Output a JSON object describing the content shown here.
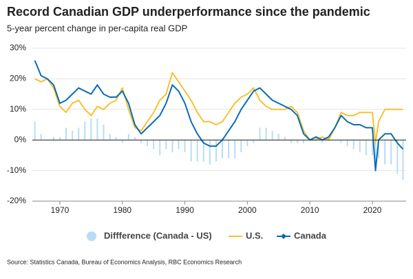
{
  "chart_data": {
    "type": "line",
    "title": "Record Canadian GDP underperformance since the pandemic",
    "subtitle": "5-year percent change in per-capita real GDP",
    "source": "Source: Statistics Canada, Bureau of Economics Analysis, RBC Economics Research",
    "x": [
      1966,
      1967,
      1968,
      1969,
      1970,
      1971,
      1972,
      1973,
      1974,
      1975,
      1976,
      1977,
      1978,
      1979,
      1980,
      1981,
      1982,
      1983,
      1984,
      1985,
      1986,
      1987,
      1988,
      1989,
      1990,
      1991,
      1992,
      1993,
      1994,
      1995,
      1996,
      1997,
      1998,
      1999,
      2000,
      2001,
      2002,
      2003,
      2004,
      2005,
      2006,
      2007,
      2008,
      2009,
      2010,
      2011,
      2012,
      2013,
      2014,
      2015,
      2016,
      2017,
      2018,
      2019,
      2020,
      2020.5,
      2021,
      2022,
      2023,
      2024,
      2024.9
    ],
    "series": [
      {
        "name": "Diffference (Canada - US)",
        "color": "#b9dcf4",
        "kind": "bar",
        "values": [
          6,
          2,
          0,
          1,
          1,
          4,
          3,
          4,
          6,
          7,
          7,
          5,
          2,
          1,
          -1,
          2,
          1,
          -1,
          -2,
          -3,
          -5,
          -3,
          -4,
          -3,
          -4,
          -7,
          -7,
          -7,
          -8,
          -7,
          -6,
          -6,
          -6,
          -4,
          -2,
          -1,
          4,
          4,
          3,
          2,
          1,
          -1,
          -1,
          -1,
          0,
          1,
          -1,
          1,
          0,
          -1,
          -2,
          -3,
          -4,
          -5,
          -5,
          -9,
          -6,
          -8,
          -8,
          -11,
          -13
        ]
      },
      {
        "name": "U.S.",
        "color": "#f5c232",
        "kind": "line",
        "values": [
          20,
          19,
          20,
          17,
          11,
          9,
          12,
          13,
          10,
          8,
          11,
          10,
          12,
          13,
          17,
          10,
          4,
          3,
          6,
          9,
          13,
          15,
          22,
          19,
          16,
          13,
          9,
          6,
          6,
          5,
          6,
          9,
          12,
          14,
          15,
          17,
          13,
          11,
          10,
          10,
          10,
          11,
          9,
          3,
          0,
          0,
          1,
          0,
          4,
          9,
          8,
          8,
          9,
          9,
          9,
          -1,
          6,
          10,
          10,
          10,
          10
        ]
      },
      {
        "name": "Canada",
        "color": "#0a6ab5",
        "kind": "line",
        "values": [
          26,
          21,
          20,
          18,
          12,
          13,
          15,
          17,
          16,
          15,
          18,
          15,
          14,
          14,
          16,
          12,
          5,
          2,
          4,
          6,
          8,
          12,
          18,
          16,
          12,
          6,
          2,
          -1,
          -2,
          -2,
          0,
          3,
          6,
          10,
          13,
          16,
          17,
          15,
          13,
          12,
          11,
          10,
          8,
          2,
          0,
          1,
          0,
          1,
          4,
          8,
          6,
          5,
          5,
          4,
          4,
          -10,
          0,
          2,
          2,
          -1,
          -3
        ]
      }
    ],
    "xlim": [
      1965.6,
      2025.4
    ],
    "xticks": [
      1970,
      1980,
      1990,
      2000,
      2010,
      2020
    ],
    "ylim": [
      -20,
      30
    ],
    "yticks": [
      {
        "value": -20,
        "label": "-20%"
      },
      {
        "value": -10,
        "label": "-10%"
      },
      {
        "value": 0,
        "label": "0%"
      },
      {
        "value": 10,
        "label": "10%"
      },
      {
        "value": 20,
        "label": "20%"
      },
      {
        "value": 30,
        "label": "30%"
      }
    ],
    "grid": true
  }
}
